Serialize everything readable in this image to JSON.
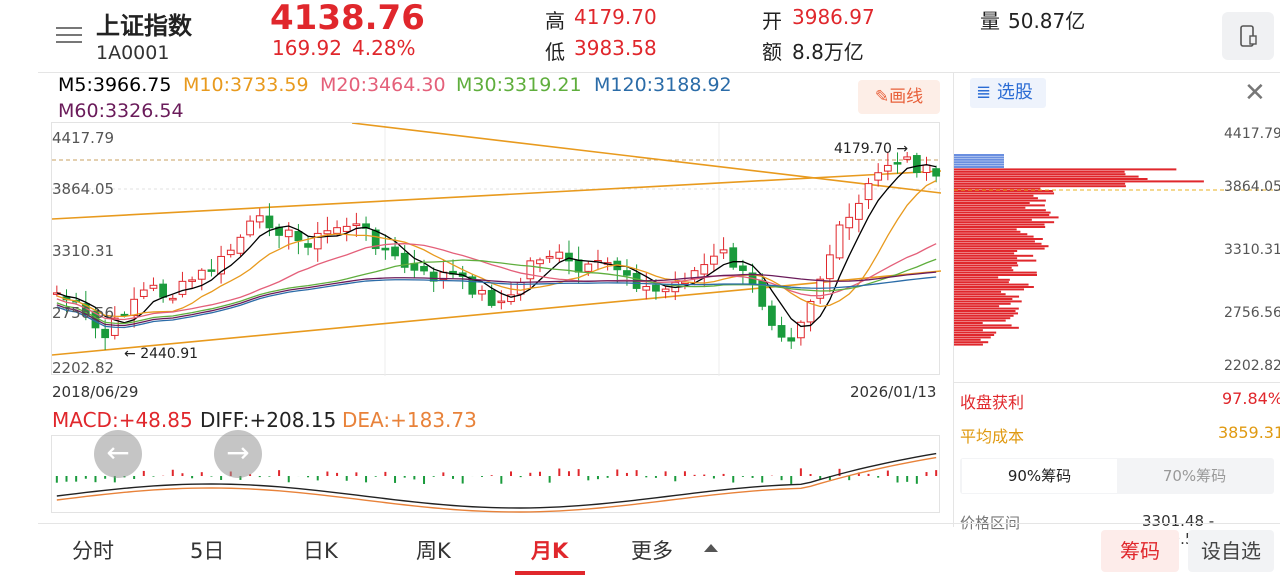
{
  "header": {
    "name": "上证指数",
    "code": "1A0001",
    "price": "4138.76",
    "change": "169.92",
    "change_pct": "4.28%",
    "high_label": "高",
    "high": "4179.70",
    "low_label": "低",
    "low": "3983.58",
    "open_label": "开",
    "open": "3986.97",
    "amount_label": "额",
    "amount": "8.8万亿",
    "volume_label": "量",
    "volume": "50.87亿"
  },
  "ma": {
    "m5": "M5:3966.75",
    "m10": "M10:3733.59",
    "m20": "M20:3464.30",
    "m30": "M30:3319.21",
    "m120": "M120:3188.92",
    "m60": "M60:3326.54",
    "colors": {
      "m5": "#000000",
      "m10": "#e89a1e",
      "m20": "#e4607a",
      "m30": "#5fae3d",
      "m120": "#2b6ca8",
      "m60": "#6a1b5a"
    }
  },
  "draw_button": "画线",
  "chart": {
    "y_ticks": [
      "4417.79",
      "3864.05",
      "3310.31",
      "2756.56",
      "2202.82"
    ],
    "start_date": "2018/06/29",
    "end_date": "2026/01/13",
    "high_mark": "4179.70",
    "low_mark": "2440.91",
    "td_tags": [
      "2",
      "3",
      "4",
      "5",
      "6",
      "7",
      "8",
      "9",
      "1",
      "2",
      "3",
      "4",
      "5",
      "6",
      "7",
      "8",
      "9",
      "1",
      "2",
      "3",
      "4",
      "5",
      "6",
      "7",
      "9",
      "9",
      "5",
      "9"
    ]
  },
  "macd": {
    "macd": "MACD:+48.85",
    "diff": "DIFF:+208.15",
    "dea": "DEA:+183.73"
  },
  "panel": {
    "select_label": "选股",
    "y_ticks": [
      "4417.79",
      "3864.05",
      "3310.31",
      "2756.56",
      "2202.82"
    ],
    "profit_label": "收盘获利",
    "profit_value": "97.84%",
    "cost_label": "平均成本",
    "cost_value": "3859.31",
    "tab1": "90%筹码",
    "tab2": "70%筹码",
    "range_label": "价格区间",
    "range_value": "3301.48 - 4099.50"
  },
  "nav": {
    "items": [
      "分时",
      "5日",
      "日K",
      "周K",
      "月K",
      "更多"
    ],
    "active": "月K",
    "chip_button": "筹码",
    "custom_button": "设自选"
  }
}
